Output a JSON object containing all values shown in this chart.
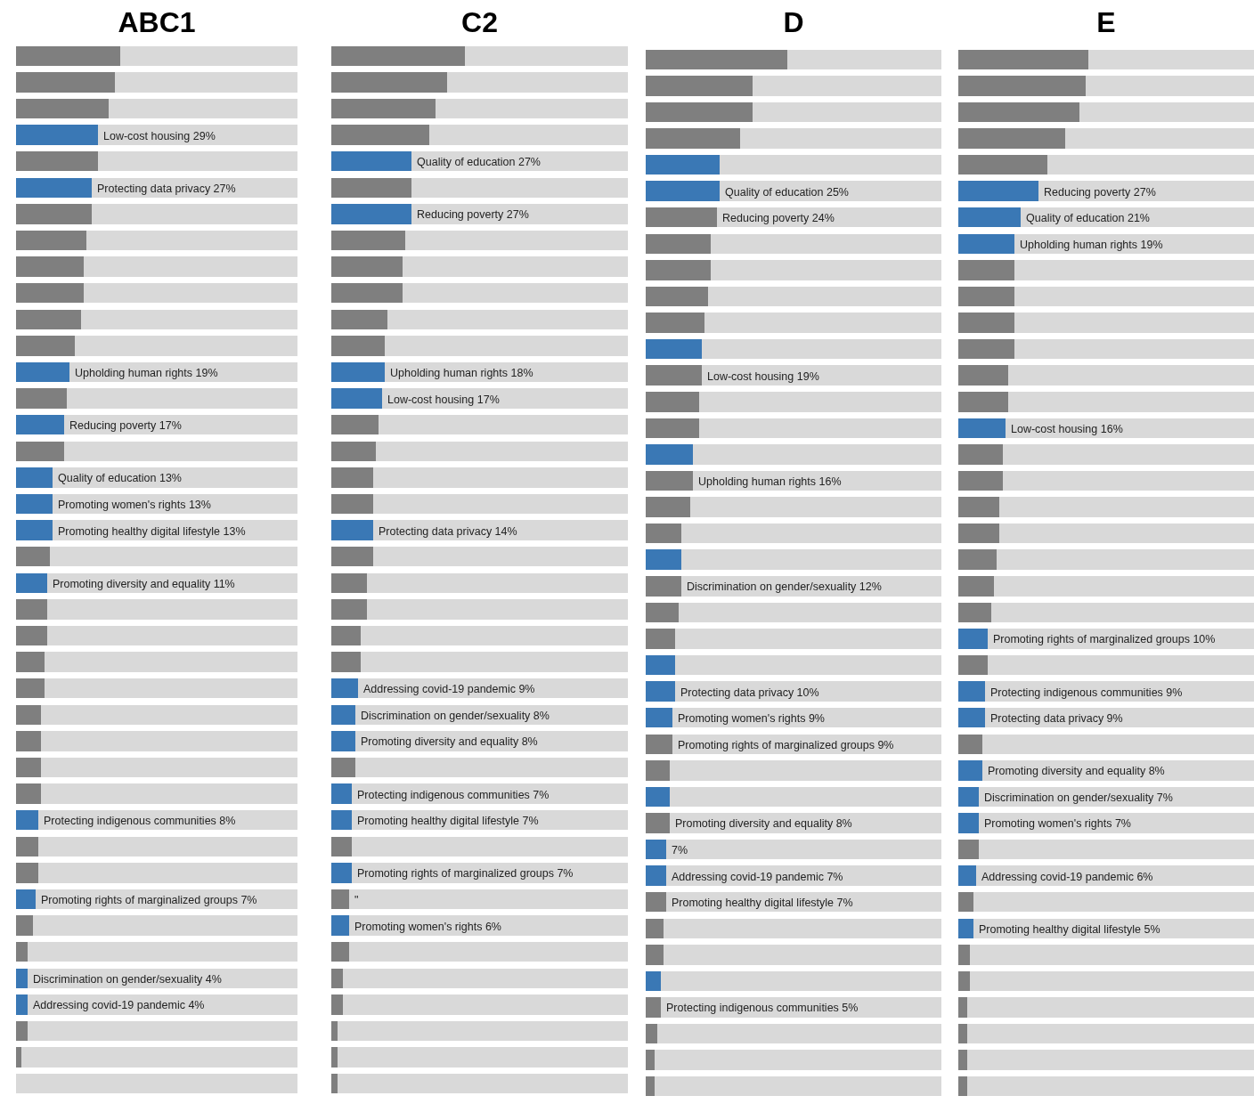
{
  "chart_data": [
    {
      "type": "bar",
      "title": "ABC1",
      "orientation": "horizontal",
      "stacked": true,
      "xlim": [
        0,
        100
      ],
      "categories": [
        null,
        null,
        null,
        null,
        null,
        null,
        null,
        null,
        null,
        null,
        null,
        null,
        null,
        null,
        null,
        null,
        null,
        null,
        null,
        null,
        null,
        null,
        null,
        null,
        null,
        null,
        null,
        null,
        null,
        null,
        null,
        null,
        null,
        null,
        null,
        null,
        null,
        null,
        null,
        null
      ],
      "series": [
        {
          "values": [
            37,
            35,
            33,
            29,
            29,
            27,
            27,
            25,
            24,
            24,
            23,
            21,
            19,
            18,
            17,
            17,
            13,
            13,
            13,
            12,
            11,
            11,
            11,
            10,
            10,
            9,
            9,
            9,
            9,
            8,
            8,
            8,
            7,
            6,
            4,
            4,
            4,
            4,
            2,
            0
          ],
          "colors": [
            "#7f7f7f",
            "#7f7f7f",
            "#7f7f7f",
            "#3a78b5",
            "#7f7f7f",
            "#3a78b5",
            "#7f7f7f",
            "#7f7f7f",
            "#7f7f7f",
            "#7f7f7f",
            "#7f7f7f",
            "#7f7f7f",
            "#3a78b5",
            "#7f7f7f",
            "#3a78b5",
            "#7f7f7f",
            "#3a78b5",
            "#3a78b5",
            "#3a78b5",
            "#7f7f7f",
            "#3a78b5",
            "#7f7f7f",
            "#7f7f7f",
            "#7f7f7f",
            "#7f7f7f",
            "#7f7f7f",
            "#7f7f7f",
            "#7f7f7f",
            "#7f7f7f",
            "#3a78b5",
            "#7f7f7f",
            "#7f7f7f",
            "#3a78b5",
            "#7f7f7f",
            "#7f7f7f",
            "#3a78b5",
            "#3a78b5",
            "#7f7f7f",
            "#7f7f7f",
            "#7f7f7f"
          ],
          "value_labels": [
            null,
            null,
            null,
            "Low-cost housing 29%",
            null,
            "Protecting data privacy 27%",
            null,
            null,
            null,
            null,
            null,
            null,
            "Upholding human rights 19%",
            null,
            "Reducing poverty 17%",
            null,
            "Quality of education 13%",
            "Promoting women's rights 13%",
            "Promoting healthy digital lifestyle 13%",
            null,
            "Promoting diversity and equality 11%",
            null,
            null,
            null,
            null,
            null,
            null,
            null,
            null,
            "Protecting indigenous communities 8%",
            null,
            null,
            "Promoting rights of marginalized groups 7%",
            null,
            null,
            "Discrimination on gender/sexuality 4%",
            "Addressing covid-19 pandemic 4%",
            null,
            null,
            null
          ]
        },
        {
          "color": "#d9d9d9",
          "values": [
            63,
            65,
            67,
            71,
            71,
            73,
            73,
            75,
            76,
            76,
            77,
            79,
            81,
            82,
            83,
            83,
            87,
            87,
            87,
            88,
            89,
            89,
            89,
            90,
            90,
            91,
            91,
            91,
            91,
            92,
            92,
            92,
            93,
            94,
            96,
            96,
            96,
            96,
            98,
            100
          ]
        }
      ]
    },
    {
      "type": "bar",
      "title": "C2",
      "orientation": "horizontal",
      "stacked": true,
      "xlim": [
        0,
        100
      ],
      "categories": [
        null,
        null,
        null,
        null,
        null,
        null,
        null,
        null,
        null,
        null,
        null,
        null,
        null,
        null,
        null,
        null,
        null,
        null,
        null,
        null,
        null,
        null,
        null,
        null,
        null,
        null,
        null,
        null,
        null,
        null,
        null,
        null,
        null,
        null,
        null,
        null,
        null,
        null,
        null,
        null
      ],
      "series": [
        {
          "values": [
            45,
            39,
            35,
            33,
            27,
            27,
            27,
            25,
            24,
            24,
            19,
            18,
            18,
            17,
            16,
            15,
            14,
            14,
            14,
            14,
            12,
            12,
            10,
            10,
            9,
            8,
            8,
            8,
            7,
            7,
            7,
            7,
            6,
            6,
            6,
            4,
            4,
            2,
            2,
            2
          ],
          "colors": [
            "#7f7f7f",
            "#7f7f7f",
            "#7f7f7f",
            "#7f7f7f",
            "#3a78b5",
            "#7f7f7f",
            "#3a78b5",
            "#7f7f7f",
            "#7f7f7f",
            "#7f7f7f",
            "#7f7f7f",
            "#7f7f7f",
            "#3a78b5",
            "#3a78b5",
            "#7f7f7f",
            "#7f7f7f",
            "#7f7f7f",
            "#7f7f7f",
            "#3a78b5",
            "#7f7f7f",
            "#7f7f7f",
            "#7f7f7f",
            "#7f7f7f",
            "#7f7f7f",
            "#3a78b5",
            "#3a78b5",
            "#3a78b5",
            "#7f7f7f",
            "#3a78b5",
            "#3a78b5",
            "#7f7f7f",
            "#3a78b5",
            "#7f7f7f",
            "#3a78b5",
            "#7f7f7f",
            "#7f7f7f",
            "#7f7f7f",
            "#7f7f7f",
            "#7f7f7f",
            "#7f7f7f"
          ],
          "value_labels": [
            null,
            null,
            null,
            null,
            "Quality of education 27%",
            null,
            "Reducing poverty 27%",
            null,
            null,
            null,
            null,
            null,
            "Upholding human rights 18%",
            "Low-cost housing 17%",
            null,
            null,
            null,
            null,
            "Protecting data privacy 14%",
            null,
            null,
            null,
            null,
            null,
            "Addressing covid-19 pandemic 9%",
            "Discrimination on gender/sexuality 8%",
            "Promoting diversity and equality 8%",
            null,
            "Protecting indigenous communities 7%",
            "Promoting healthy digital lifestyle 7%",
            null,
            "Promoting rights of marginalized groups 7%",
            "\"",
            "Promoting women's rights 6%",
            null,
            null,
            null,
            null,
            null,
            null
          ]
        },
        {
          "color": "#d9d9d9",
          "values": [
            55,
            61,
            65,
            67,
            73,
            73,
            73,
            75,
            76,
            76,
            81,
            82,
            82,
            83,
            84,
            85,
            86,
            86,
            86,
            86,
            88,
            88,
            90,
            90,
            91,
            92,
            92,
            92,
            93,
            93,
            93,
            93,
            94,
            94,
            94,
            96,
            96,
            98,
            98,
            98
          ]
        }
      ]
    },
    {
      "type": "bar",
      "title": "D",
      "orientation": "horizontal",
      "stacked": true,
      "xlim": [
        0,
        100
      ],
      "categories": [
        null,
        null,
        null,
        null,
        null,
        null,
        null,
        null,
        null,
        null,
        null,
        null,
        null,
        null,
        null,
        null,
        null,
        null,
        null,
        null,
        null,
        null,
        null,
        null,
        null,
        null,
        null,
        null,
        null,
        null,
        null,
        null,
        null,
        null,
        null,
        null,
        null,
        null,
        null,
        null
      ],
      "series": [
        {
          "values": [
            48,
            36,
            36,
            32,
            25,
            25,
            24,
            22,
            22,
            21,
            20,
            19,
            19,
            18,
            18,
            16,
            16,
            15,
            12,
            12,
            12,
            11,
            10,
            10,
            10,
            9,
            9,
            8,
            8,
            8,
            7,
            7,
            7,
            6,
            6,
            5,
            5,
            4,
            3,
            3
          ],
          "colors": [
            "#7f7f7f",
            "#7f7f7f",
            "#7f7f7f",
            "#7f7f7f",
            "#3a78b5",
            "#3a78b5",
            "#7f7f7f",
            "#7f7f7f",
            "#7f7f7f",
            "#7f7f7f",
            "#7f7f7f",
            "#3a78b5",
            "#7f7f7f",
            "#7f7f7f",
            "#7f7f7f",
            "#3a78b5",
            "#7f7f7f",
            "#7f7f7f",
            "#7f7f7f",
            "#3a78b5",
            "#7f7f7f",
            "#7f7f7f",
            "#7f7f7f",
            "#3a78b5",
            "#3a78b5",
            "#3a78b5",
            "#7f7f7f",
            "#7f7f7f",
            "#3a78b5",
            "#7f7f7f",
            "#3a78b5",
            "#3a78b5",
            "#7f7f7f",
            "#7f7f7f",
            "#7f7f7f",
            "#3a78b5",
            "#7f7f7f",
            "#7f7f7f",
            "#7f7f7f",
            "#7f7f7f"
          ],
          "value_labels": [
            null,
            null,
            null,
            null,
            null,
            "Quality of education 25%",
            "Reducing poverty 24%",
            null,
            null,
            null,
            null,
            null,
            "Low-cost housing 19%",
            null,
            null,
            null,
            "Upholding human rights 16%",
            null,
            null,
            null,
            "Discrimination on gender/sexuality 12%",
            null,
            null,
            null,
            "Protecting data privacy 10%",
            "Promoting women's rights 9%",
            "Promoting rights of marginalized groups 9%",
            null,
            null,
            "Promoting diversity and equality 8%",
            "7%",
            "Addressing covid-19 pandemic 7%",
            "Promoting healthy digital lifestyle 7%",
            null,
            null,
            null,
            "Protecting indigenous communities 5%",
            null,
            null,
            null
          ]
        },
        {
          "color": "#d9d9d9",
          "values": [
            52,
            64,
            64,
            68,
            75,
            75,
            76,
            78,
            78,
            79,
            80,
            81,
            81,
            82,
            82,
            84,
            84,
            85,
            88,
            88,
            88,
            89,
            90,
            90,
            90,
            91,
            91,
            92,
            92,
            92,
            93,
            93,
            93,
            94,
            94,
            95,
            95,
            96,
            97,
            97
          ]
        }
      ]
    },
    {
      "type": "bar",
      "title": "E",
      "orientation": "horizontal",
      "stacked": true,
      "xlim": [
        0,
        100
      ],
      "categories": [
        null,
        null,
        null,
        null,
        null,
        null,
        null,
        null,
        null,
        null,
        null,
        null,
        null,
        null,
        null,
        null,
        null,
        null,
        null,
        null,
        null,
        null,
        null,
        null,
        null,
        null,
        null,
        null,
        null,
        null,
        null,
        null,
        null,
        null,
        null,
        null,
        null,
        null,
        null,
        null
      ],
      "series": [
        {
          "values": [
            44,
            43,
            41,
            36,
            30,
            27,
            21,
            19,
            19,
            19,
            19,
            19,
            17,
            17,
            16,
            15,
            15,
            14,
            14,
            13,
            12,
            11,
            10,
            10,
            9,
            9,
            8,
            8,
            7,
            7,
            7,
            6,
            5,
            5,
            4,
            4,
            3,
            3,
            3,
            3
          ],
          "colors": [
            "#7f7f7f",
            "#7f7f7f",
            "#7f7f7f",
            "#7f7f7f",
            "#7f7f7f",
            "#3a78b5",
            "#3a78b5",
            "#3a78b5",
            "#7f7f7f",
            "#7f7f7f",
            "#7f7f7f",
            "#7f7f7f",
            "#7f7f7f",
            "#7f7f7f",
            "#3a78b5",
            "#7f7f7f",
            "#7f7f7f",
            "#7f7f7f",
            "#7f7f7f",
            "#7f7f7f",
            "#7f7f7f",
            "#7f7f7f",
            "#3a78b5",
            "#7f7f7f",
            "#3a78b5",
            "#3a78b5",
            "#7f7f7f",
            "#3a78b5",
            "#3a78b5",
            "#3a78b5",
            "#7f7f7f",
            "#3a78b5",
            "#7f7f7f",
            "#3a78b5",
            "#7f7f7f",
            "#7f7f7f",
            "#7f7f7f",
            "#7f7f7f",
            "#7f7f7f",
            "#7f7f7f"
          ],
          "value_labels": [
            null,
            null,
            null,
            null,
            null,
            "Reducing poverty 27%",
            "Quality of education 21%",
            "Upholding human rights 19%",
            null,
            null,
            null,
            null,
            null,
            null,
            "Low-cost housing 16%",
            null,
            null,
            null,
            null,
            null,
            null,
            null,
            "Promoting rights of marginalized groups 10%",
            null,
            "Protecting indigenous communities 9%",
            "Protecting data privacy 9%",
            null,
            "Promoting diversity and equality 8%",
            "Discrimination on gender/sexuality 7%",
            "Promoting women's rights 7%",
            null,
            "Addressing covid-19 pandemic 6%",
            null,
            "Promoting healthy digital lifestyle 5%",
            null,
            null,
            null,
            null,
            null,
            null
          ]
        },
        {
          "color": "#d9d9d9",
          "values": [
            56,
            57,
            59,
            64,
            70,
            73,
            79,
            81,
            81,
            81,
            81,
            81,
            83,
            83,
            84,
            85,
            85,
            86,
            86,
            87,
            88,
            89,
            90,
            90,
            91,
            91,
            92,
            92,
            93,
            93,
            93,
            94,
            95,
            95,
            96,
            96,
            97,
            97,
            97,
            97
          ]
        }
      ]
    }
  ]
}
